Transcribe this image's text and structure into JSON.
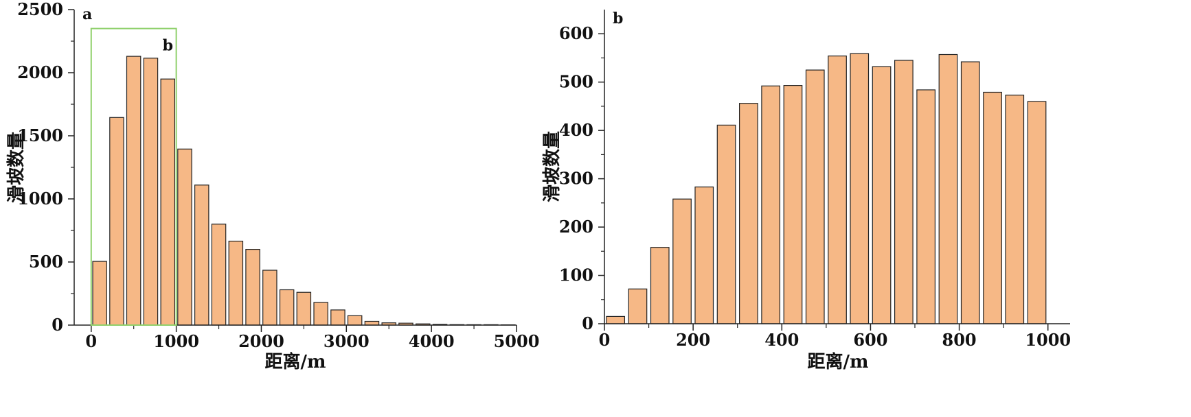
{
  "colors": {
    "bar_fill": "#f6b886",
    "bar_stroke": "#222222",
    "highlight_box": "#8fd06b",
    "axis": "#222222"
  },
  "chart_data": [
    {
      "panel": "a",
      "type": "bar",
      "xlabel": "距离/m",
      "ylabel": "滑坡数量",
      "xlim": [
        -200,
        5000
      ],
      "ylim": [
        0,
        2500
      ],
      "xticks": [
        0,
        1000,
        2000,
        3000,
        4000,
        5000
      ],
      "yticks": [
        0,
        500,
        1000,
        1500,
        2000,
        2500
      ],
      "bin_width": 200,
      "x": [
        100,
        300,
        500,
        700,
        900,
        1100,
        1300,
        1500,
        1700,
        1900,
        2100,
        2300,
        2500,
        2700,
        2900,
        3100,
        3300,
        3500,
        3700,
        3900,
        4100,
        4300,
        4500,
        4700,
        4900
      ],
      "values": [
        505,
        1645,
        2130,
        2115,
        1950,
        1395,
        1110,
        800,
        665,
        600,
        435,
        280,
        260,
        180,
        120,
        75,
        30,
        18,
        15,
        10,
        6,
        4,
        3,
        3,
        2
      ],
      "highlight_region": {
        "label": "b",
        "x_range": [
          0,
          1000
        ],
        "y_top": 2350
      },
      "grid": false
    },
    {
      "panel": "b",
      "type": "bar",
      "xlabel": "距离/m",
      "ylabel": "滑坡数量",
      "xlim": [
        0,
        1050
      ],
      "ylim": [
        0,
        650
      ],
      "xticks": [
        0,
        200,
        400,
        600,
        800,
        1000
      ],
      "yticks": [
        0,
        100,
        200,
        300,
        400,
        500,
        600
      ],
      "bin_width": 50,
      "x": [
        25,
        75,
        125,
        175,
        225,
        275,
        325,
        375,
        425,
        475,
        525,
        575,
        625,
        675,
        725,
        775,
        825,
        875,
        925,
        975
      ],
      "values": [
        15,
        72,
        158,
        258,
        283,
        411,
        456,
        492,
        493,
        525,
        554,
        559,
        532,
        545,
        484,
        557,
        542,
        479,
        473,
        460
      ],
      "grid": false
    }
  ]
}
